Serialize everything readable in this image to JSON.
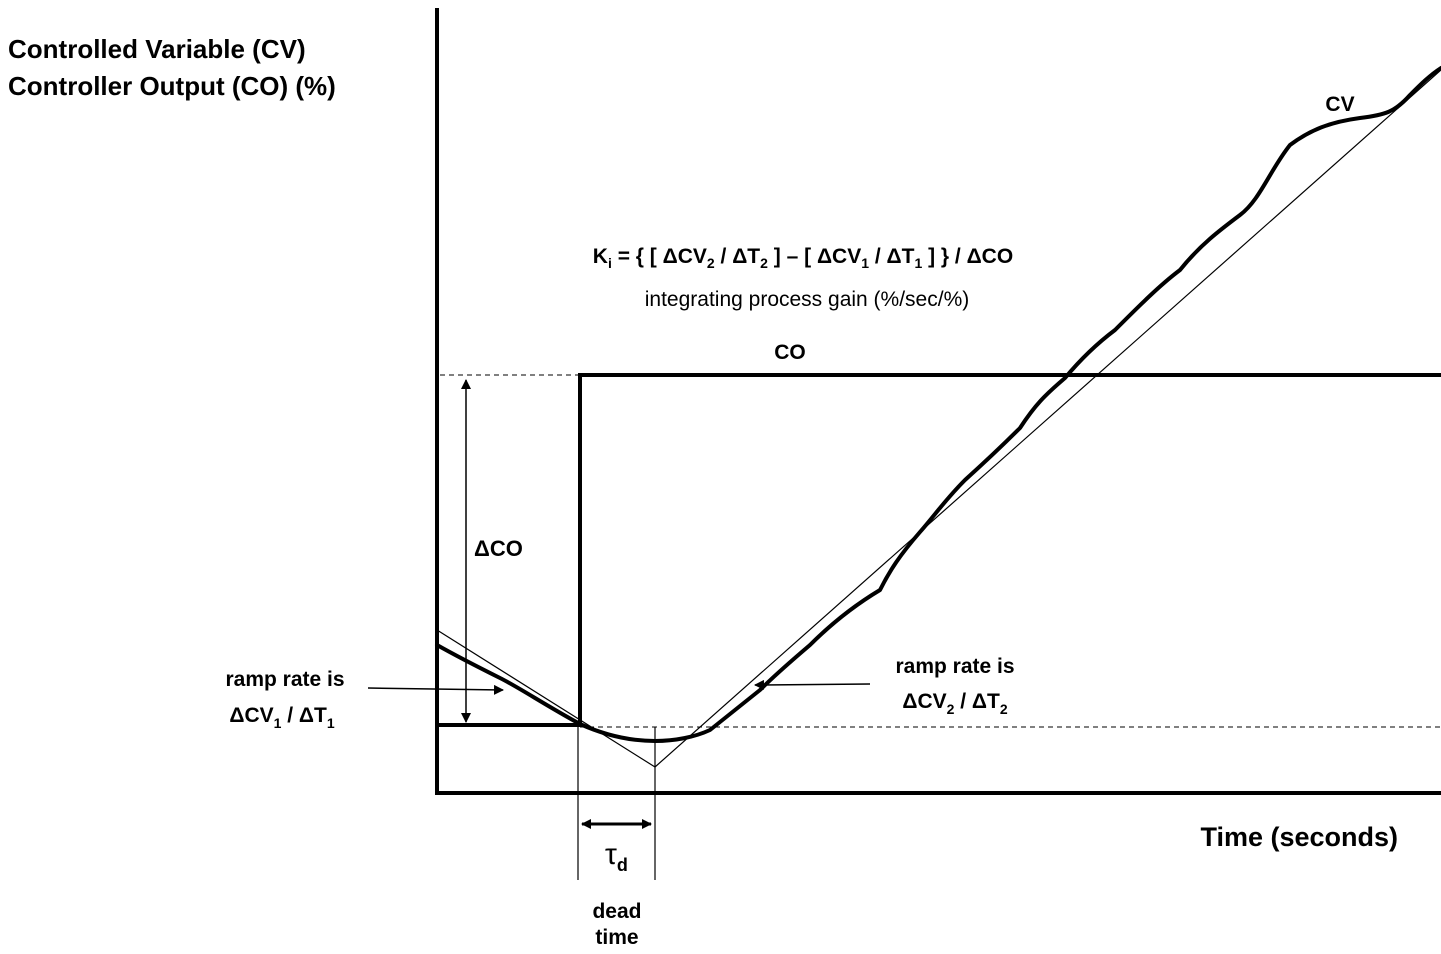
{
  "y_axis_label": {
    "line1": "Controlled Variable (CV)",
    "line2": "Controller Output (CO) (%)"
  },
  "x_axis_label": "Time (seconds)",
  "series_labels": {
    "cv": "CV",
    "co": "CO"
  },
  "formula": {
    "k": "K",
    "k_sub": "i",
    "part1": " = { [ ΔCV",
    "sub1": "2",
    "part2": " / ΔT",
    "sub2": "2",
    "part3": " ] – [ ΔCV",
    "sub3": "1",
    "part4": " / ΔT",
    "sub4": "1",
    "part5": " ] } / ΔCO",
    "caption": "integrating process gain (%/sec/%)"
  },
  "delta_co_label": "ΔCO",
  "ramp_left": {
    "line1": "ramp rate is",
    "cv": "ΔCV",
    "cv_sub": "1",
    "mid": " / ΔT",
    "t_sub": "1"
  },
  "ramp_right": {
    "line1": "ramp rate is",
    "cv": "ΔCV",
    "cv_sub": "2",
    "mid": " / ΔT",
    "t_sub": "2"
  },
  "dead_time": {
    "symbol": "τ",
    "symbol_sub": "d",
    "line1": "dead",
    "line2": "time"
  },
  "colors": {
    "ink": "#000000",
    "background": "#ffffff"
  }
}
